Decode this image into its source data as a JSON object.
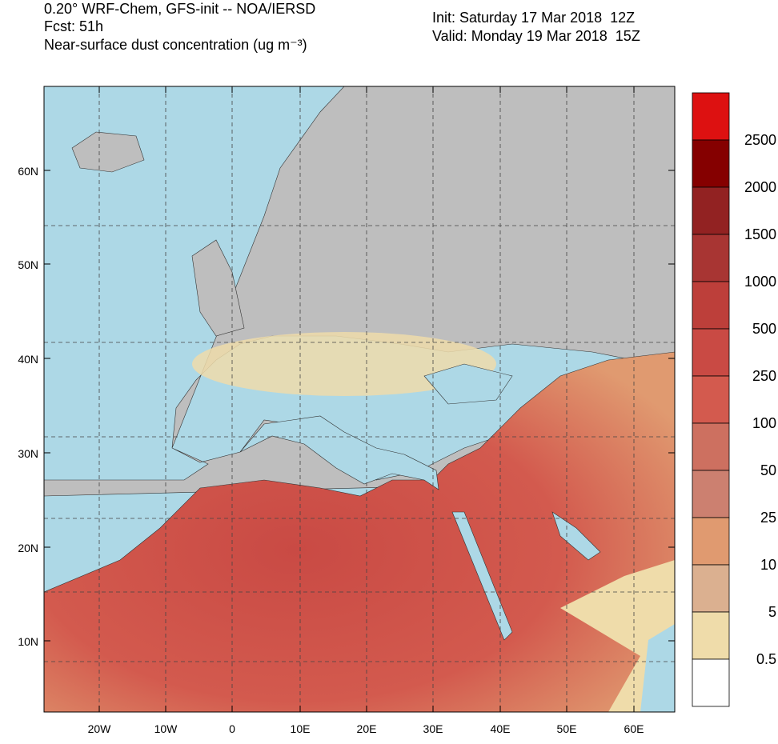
{
  "header": {
    "line1": "0.20° WRF-Chem, GFS-init -- NOA/IERSD",
    "line2": "Fcst: 51h",
    "line3": "Near-surface dust concentration (ug m⁻³)",
    "init": "Init: Saturday 17 Mar 2018  12Z",
    "valid": "Valid: Monday 19 Mar 2018  15Z"
  },
  "map": {
    "lat_labels": [
      "60N",
      "50N",
      "40N",
      "30N",
      "20N",
      "10N"
    ],
    "lon_labels": [
      "20W",
      "10W",
      "0",
      "10E",
      "20E",
      "30E",
      "40E",
      "50E",
      "60E"
    ]
  },
  "colorbar": {
    "colors": [
      "#dd1111",
      "#850000",
      "#922222",
      "#a83533",
      "#bd3f3a",
      "#c94a44",
      "#d35a4e",
      "#cd7060",
      "#cc8070",
      "#e09a70",
      "#dbb090",
      "#efdcaa",
      "#ffffff"
    ],
    "labels": [
      2500,
      2000,
      1500,
      1000,
      500,
      250,
      100,
      50,
      25,
      10,
      5,
      0.5
    ]
  }
}
